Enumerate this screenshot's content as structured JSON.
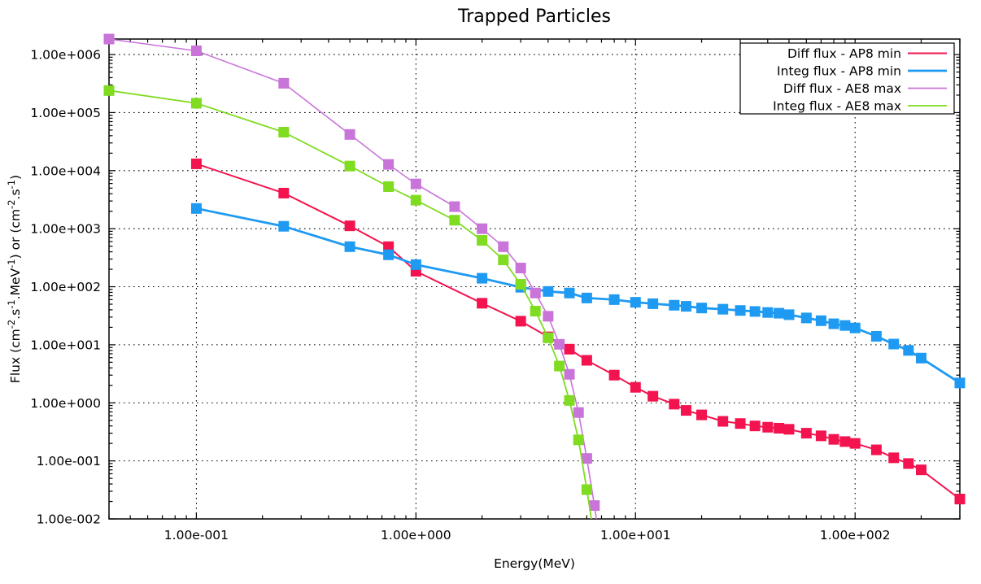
{
  "chart_data": {
    "type": "line",
    "title": "Trapped Particles",
    "xlabel": "Energy(MeV)",
    "ylabel_parts": [
      [
        "t",
        "Flux (cm"
      ],
      [
        "s",
        "-2"
      ],
      [
        "t",
        ".s"
      ],
      [
        "s",
        "-1"
      ],
      [
        "t",
        ".MeV"
      ],
      [
        "s",
        "-1"
      ],
      [
        "t",
        ") or (cm"
      ],
      [
        "s",
        "-2"
      ],
      [
        "t",
        ".s"
      ],
      [
        "s",
        "-1"
      ],
      [
        "t",
        ")"
      ]
    ],
    "x_axis": {
      "scale": "log",
      "min": 0.04,
      "max": 300,
      "ticks": [
        0.1,
        1,
        10,
        100
      ],
      "tick_labels": [
        "1.00e-001",
        "1.00e+000",
        "1.00e+001",
        "1.00e+002"
      ]
    },
    "y_axis": {
      "scale": "log",
      "min": 0.01,
      "max": 1850000,
      "ticks": [
        1000000,
        100000,
        10000,
        1000,
        100,
        10,
        1,
        0.1,
        0.01
      ],
      "tick_labels": [
        "1.00e+006",
        "1.00e+005",
        "1.00e+004",
        "1.00e+003",
        "1.00e+002",
        "1.00e+001",
        "1.00e+000",
        "1.00e-001",
        "1.00e-002"
      ]
    },
    "grid": "dotted-major-decades",
    "legend_position": "top-right",
    "marker": {
      "shape": "square",
      "size": 13
    },
    "series": [
      {
        "name": "Diff flux - AP8 min",
        "color": "#f3134f",
        "line_width": 2,
        "points": [
          [
            0.1,
            13100
          ],
          [
            0.25,
            4100
          ],
          [
            0.5,
            1120
          ],
          [
            0.75,
            490
          ],
          [
            1,
            185
          ],
          [
            2,
            52
          ],
          [
            3,
            25.5
          ],
          [
            4,
            13.7
          ],
          [
            5,
            8.4
          ],
          [
            6,
            5.4
          ],
          [
            8,
            3.0
          ],
          [
            10,
            1.85
          ],
          [
            12,
            1.3
          ],
          [
            15,
            0.95
          ],
          [
            17,
            0.74
          ],
          [
            20,
            0.62
          ],
          [
            25,
            0.48
          ],
          [
            30,
            0.44
          ],
          [
            35,
            0.4
          ],
          [
            40,
            0.38
          ],
          [
            45,
            0.365
          ],
          [
            50,
            0.35
          ],
          [
            60,
            0.3
          ],
          [
            70,
            0.27
          ],
          [
            80,
            0.235
          ],
          [
            90,
            0.215
          ],
          [
            100,
            0.2
          ],
          [
            125,
            0.155
          ],
          [
            150,
            0.113
          ],
          [
            175,
            0.09
          ],
          [
            200,
            0.07
          ],
          [
            300,
            0.022
          ]
        ]
      },
      {
        "name": "Integ flux - AP8 min",
        "color": "#1f9af2",
        "line_width": 2.8,
        "points": [
          [
            0.1,
            2230
          ],
          [
            0.25,
            1100
          ],
          [
            0.5,
            490
          ],
          [
            0.75,
            355
          ],
          [
            1,
            240
          ],
          [
            2,
            140
          ],
          [
            3,
            98
          ],
          [
            4,
            83
          ],
          [
            5,
            78
          ],
          [
            6,
            64
          ],
          [
            8,
            60
          ],
          [
            10,
            54
          ],
          [
            12,
            51
          ],
          [
            15,
            48
          ],
          [
            17,
            46
          ],
          [
            20,
            43
          ],
          [
            25,
            41
          ],
          [
            30,
            39
          ],
          [
            35,
            37.5
          ],
          [
            40,
            36
          ],
          [
            45,
            35
          ],
          [
            50,
            33
          ],
          [
            60,
            29
          ],
          [
            70,
            26
          ],
          [
            80,
            23
          ],
          [
            90,
            21.5
          ],
          [
            100,
            19.5
          ],
          [
            125,
            14
          ],
          [
            150,
            10.3
          ],
          [
            175,
            8
          ],
          [
            200,
            5.9
          ],
          [
            300,
            2.2
          ]
        ]
      },
      {
        "name": "Diff flux - AE8 max",
        "color": "#c974d9",
        "line_width": 1.6,
        "points": [
          [
            0.04,
            1850000
          ],
          [
            0.1,
            1160000
          ],
          [
            0.25,
            320000
          ],
          [
            0.5,
            42000
          ],
          [
            0.75,
            12800
          ],
          [
            1,
            5900
          ],
          [
            1.5,
            2400
          ],
          [
            2,
            1000
          ],
          [
            2.5,
            490
          ],
          [
            3,
            210
          ],
          [
            3.5,
            78
          ],
          [
            4,
            31
          ],
          [
            4.5,
            10.2
          ],
          [
            5,
            3.1
          ],
          [
            5.5,
            0.68
          ],
          [
            6,
            0.11
          ],
          [
            6.5,
            0.017
          ],
          [
            7,
            0.0025
          ]
        ]
      },
      {
        "name": "Integ flux - AE8 max",
        "color": "#7fdc20",
        "line_width": 1.8,
        "points": [
          [
            0.04,
            240000
          ],
          [
            0.1,
            145000
          ],
          [
            0.25,
            46000
          ],
          [
            0.5,
            12000
          ],
          [
            0.75,
            5300
          ],
          [
            1,
            3100
          ],
          [
            1.5,
            1400
          ],
          [
            2,
            630
          ],
          [
            2.5,
            290
          ],
          [
            3,
            110
          ],
          [
            3.5,
            38
          ],
          [
            4,
            13.2
          ],
          [
            4.5,
            4.3
          ],
          [
            5,
            1.1
          ],
          [
            5.5,
            0.23
          ],
          [
            6,
            0.032
          ],
          [
            6.5,
            0.0045
          ]
        ]
      }
    ]
  }
}
